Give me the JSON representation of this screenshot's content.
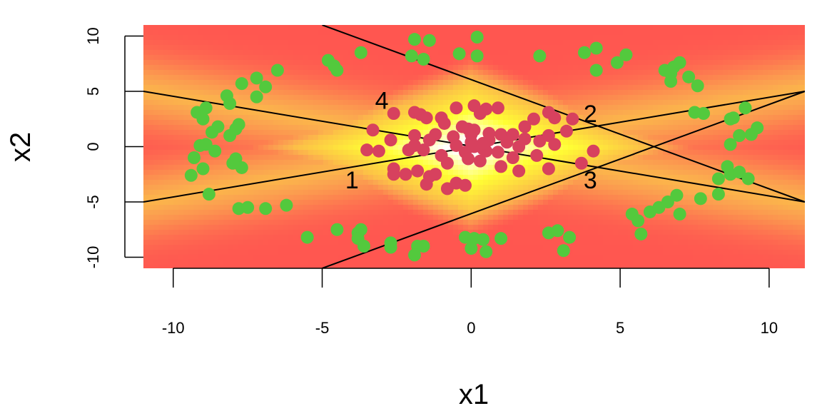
{
  "chart_data": {
    "type": "scatter",
    "title": "",
    "xlabel": "x1",
    "ylabel": "x2",
    "xlim": [
      -11.0,
      11.2
    ],
    "ylim": [
      -11.0,
      11.0
    ],
    "x_ticks": [
      -10,
      -5,
      0,
      5,
      10
    ],
    "y_ticks": [
      -10,
      -5,
      0,
      5,
      10
    ],
    "x_tick_labels": [
      "-10",
      "-5",
      "0",
      "5",
      "10"
    ],
    "y_tick_labels": [
      "-10",
      "-5",
      "0",
      "5",
      "10"
    ],
    "grid": false,
    "background": "heatmap",
    "background_colors": [
      "#ff5050",
      "#fba74f",
      "#ffff33",
      "#ffffff"
    ],
    "series": [
      {
        "color": "#53c93d",
        "points": [
          [
            -9.2,
            3.1
          ],
          [
            -8.9,
            3.5
          ],
          [
            -9.0,
            2.5
          ],
          [
            -8.7,
            1.3
          ],
          [
            -8.5,
            1.8
          ],
          [
            -8.1,
            1.0
          ],
          [
            -7.8,
            2.0
          ],
          [
            -7.9,
            1.6
          ],
          [
            -8.9,
            0.2
          ],
          [
            -9.1,
            0.1
          ],
          [
            -8.6,
            -0.4
          ],
          [
            -9.3,
            -1.0
          ],
          [
            -9.0,
            -2.0
          ],
          [
            -9.4,
            -2.6
          ],
          [
            -8.8,
            -4.3
          ],
          [
            -7.9,
            -1.1
          ],
          [
            -7.7,
            -1.9
          ],
          [
            -8.0,
            -1.5
          ],
          [
            -8.2,
            4.6
          ],
          [
            -8.1,
            3.9
          ],
          [
            -7.7,
            5.7
          ],
          [
            -7.2,
            6.2
          ],
          [
            -6.9,
            5.4
          ],
          [
            -7.2,
            4.5
          ],
          [
            -6.5,
            6.9
          ],
          [
            -7.8,
            -5.6
          ],
          [
            -7.5,
            -5.5
          ],
          [
            -6.9,
            -5.6
          ],
          [
            -6.2,
            -5.3
          ],
          [
            -4.8,
            7.8
          ],
          [
            -4.6,
            7.3
          ],
          [
            -4.5,
            6.9
          ],
          [
            -3.7,
            8.5
          ],
          [
            -5.5,
            -8.2
          ],
          [
            -4.5,
            -7.5
          ],
          [
            -3.8,
            -7.8
          ],
          [
            -3.7,
            -7.5
          ],
          [
            -3.8,
            -8.3
          ],
          [
            -3.6,
            -9.0
          ],
          [
            -2.7,
            -8.7
          ],
          [
            -2.7,
            -9.1
          ],
          [
            -1.9,
            9.7
          ],
          [
            -1.4,
            9.6
          ],
          [
            -2.0,
            8.2
          ],
          [
            -1.6,
            7.9
          ],
          [
            -0.4,
            8.4
          ],
          [
            0.2,
            8.2
          ],
          [
            0.2,
            9.9
          ],
          [
            -1.8,
            -9.0
          ],
          [
            -1.6,
            -9.0
          ],
          [
            -1.9,
            -9.8
          ],
          [
            -0.2,
            -8.2
          ],
          [
            0.1,
            -8.3
          ],
          [
            0.0,
            -9.2
          ],
          [
            0.4,
            -8.4
          ],
          [
            0.5,
            -9.5
          ],
          [
            1.0,
            -8.3
          ],
          [
            2.3,
            8.2
          ],
          [
            2.6,
            -7.8
          ],
          [
            2.9,
            -7.6
          ],
          [
            3.1,
            -9.4
          ],
          [
            3.3,
            -8.2
          ],
          [
            3.8,
            8.5
          ],
          [
            4.2,
            8.9
          ],
          [
            4.2,
            6.9
          ],
          [
            4.9,
            7.6
          ],
          [
            5.2,
            8.3
          ],
          [
            5.4,
            -6.1
          ],
          [
            5.6,
            -6.7
          ],
          [
            5.7,
            -7.9
          ],
          [
            6.0,
            -5.9
          ],
          [
            6.3,
            -5.5
          ],
          [
            6.6,
            -5.0
          ],
          [
            6.9,
            -4.4
          ],
          [
            7.0,
            -6.1
          ],
          [
            6.5,
            6.9
          ],
          [
            6.7,
            6.6
          ],
          [
            6.8,
            7.2
          ],
          [
            7.0,
            7.6
          ],
          [
            6.7,
            5.9
          ],
          [
            7.3,
            6.3
          ],
          [
            7.6,
            5.5
          ],
          [
            7.5,
            3.1
          ],
          [
            7.8,
            3.0
          ],
          [
            8.7,
            2.5
          ],
          [
            8.8,
            2.6
          ],
          [
            9.2,
            3.5
          ],
          [
            9.0,
            1.0
          ],
          [
            9.4,
            1.1
          ],
          [
            9.6,
            1.7
          ],
          [
            8.7,
            0.2
          ],
          [
            8.3,
            -2.9
          ],
          [
            7.7,
            -4.7
          ],
          [
            8.3,
            -4.3
          ],
          [
            8.6,
            -1.8
          ],
          [
            8.7,
            -2.5
          ],
          [
            9.0,
            -2.3
          ],
          [
            9.3,
            -2.9
          ]
        ]
      },
      {
        "color": "#d7415e",
        "points": [
          [
            -3.5,
            -0.3
          ],
          [
            -3.1,
            -0.4
          ],
          [
            -2.7,
            0.6
          ],
          [
            -2.6,
            3.0
          ],
          [
            -2.6,
            -2.0
          ],
          [
            -2.6,
            -2.5
          ],
          [
            -3.3,
            1.5
          ],
          [
            -2.1,
            -0.3
          ],
          [
            -1.9,
            3.1
          ],
          [
            -1.7,
            2.9
          ],
          [
            -1.5,
            2.6
          ],
          [
            -1.9,
            1.0
          ],
          [
            -1.9,
            0.1
          ],
          [
            -1.6,
            -0.3
          ],
          [
            -1.8,
            -2.2
          ],
          [
            -1.4,
            -2.7
          ],
          [
            -1.5,
            -3.4
          ],
          [
            -0.8,
            -3.8
          ],
          [
            -0.5,
            -3.3
          ],
          [
            -0.2,
            -3.5
          ],
          [
            -1.2,
            1.1
          ],
          [
            -1.4,
            0.6
          ],
          [
            -1.0,
            2.6
          ],
          [
            -0.5,
            3.5
          ],
          [
            -0.6,
            0.9
          ],
          [
            -0.5,
            0.1
          ],
          [
            -0.8,
            -1.5
          ],
          [
            -1.2,
            -2.5
          ],
          [
            -0.1,
            1.6
          ],
          [
            0.0,
            1.1
          ],
          [
            0.0,
            0.4
          ],
          [
            0.1,
            0.0
          ],
          [
            0.4,
            -0.2
          ],
          [
            -0.2,
            -0.5
          ],
          [
            0.3,
            -1.3
          ],
          [
            0.5,
            -0.4
          ],
          [
            0.6,
            0.6
          ],
          [
            0.6,
            1.2
          ],
          [
            0.3,
            3.0
          ],
          [
            0.5,
            3.4
          ],
          [
            0.9,
            3.5
          ],
          [
            -0.9,
            2.1
          ],
          [
            0.9,
            -0.5
          ],
          [
            1.0,
            -1.8
          ],
          [
            1.2,
            0.4
          ],
          [
            1.0,
            1.1
          ],
          [
            1.4,
            -1.0
          ],
          [
            1.6,
            0.0
          ],
          [
            1.8,
            0.7
          ],
          [
            1.8,
            1.8
          ],
          [
            1.6,
            -2.2
          ],
          [
            2.2,
            -0.8
          ],
          [
            2.3,
            0.5
          ],
          [
            2.6,
            1.0
          ],
          [
            2.6,
            -2.0
          ],
          [
            2.1,
            2.5
          ],
          [
            2.6,
            3.1
          ],
          [
            2.8,
            2.6
          ],
          [
            3.4,
            2.5
          ],
          [
            3.2,
            1.4
          ],
          [
            3.7,
            -1.5
          ],
          [
            4.1,
            -0.4
          ],
          [
            0.1,
            3.7
          ],
          [
            0.1,
            1.5
          ],
          [
            -0.3,
            1.8
          ],
          [
            0.4,
            0.3
          ],
          [
            -0.1,
            -1.1
          ],
          [
            -1.0,
            -0.8
          ],
          [
            1.4,
            1.1
          ],
          [
            2.8,
            0.2
          ],
          [
            -2.2,
            -2.5
          ]
        ]
      }
    ],
    "lines": [
      {
        "label": "1",
        "x": [
          -11.0,
          11.2
        ],
        "y": [
          -5.0,
          5.0
        ],
        "label_x": -4.0,
        "label_y": -3.2
      },
      {
        "label": "2",
        "x": [
          -11.0,
          11.2
        ],
        "y": [
          5.0,
          -5.0
        ],
        "label_x": 4.0,
        "label_y": 2.8
      },
      {
        "label": "3",
        "x": [
          -5.0,
          11.2
        ],
        "y": [
          -11.0,
          5.0
        ],
        "label_x": 4.0,
        "label_y": -3.2
      },
      {
        "label": "4",
        "x": [
          -5.0,
          11.2
        ],
        "y": [
          11.0,
          -5.0
        ],
        "label_x": -3.0,
        "label_y": 4.0
      }
    ]
  }
}
